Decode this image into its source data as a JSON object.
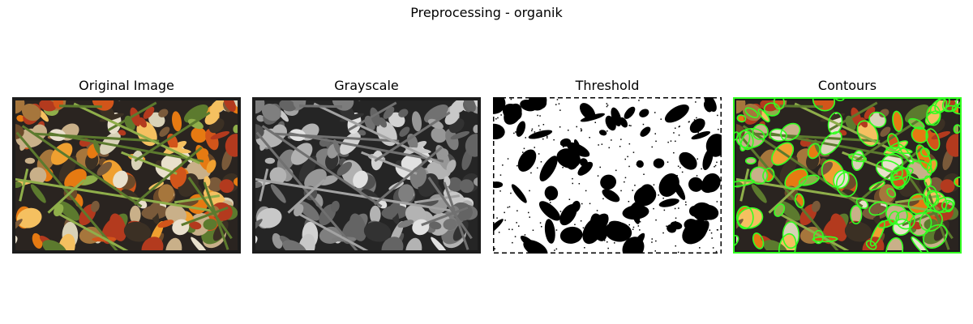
{
  "figure": {
    "title": "Preprocessing - organik",
    "panels": [
      {
        "title": "Original Image",
        "kind": "color"
      },
      {
        "title": "Grayscale",
        "kind": "gray"
      },
      {
        "title": "Threshold",
        "kind": "binary"
      },
      {
        "title": "Contours",
        "kind": "contours"
      }
    ],
    "colors": {
      "background": "#ffffff",
      "contour_line": "#33ff22",
      "bin_tray": "#1c1c1c",
      "orange_peel": "#e67a12",
      "green_stem": "#5c7a2e"
    }
  }
}
